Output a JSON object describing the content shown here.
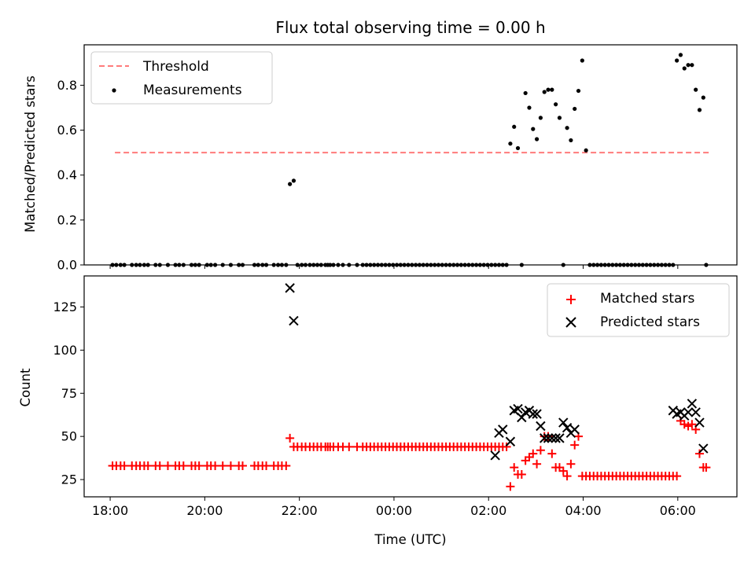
{
  "chart_data": [
    {
      "type": "scatter",
      "title": "Flux total observing time = 0.00 h",
      "xlabel": "",
      "ylabel": "Matched/Predicted stars",
      "xlim": [
        -0.55,
        13.25
      ],
      "ylim": [
        0,
        0.98
      ],
      "yticks": [
        0.0,
        0.2,
        0.4,
        0.6,
        0.8
      ],
      "ytick_labels": [
        "0.0",
        "0.2",
        "0.4",
        "0.6",
        "0.8"
      ],
      "legend": {
        "position": "upper-left"
      },
      "grid": false,
      "series": [
        {
          "name": "Threshold",
          "kind": "line",
          "style": "dashed",
          "color": "#ff7b7b",
          "x": [
            0.1,
            12.66
          ],
          "y": [
            0.5,
            0.5
          ]
        },
        {
          "name": "Measurements",
          "kind": "scatter",
          "marker": "dot",
          "color": "#000000",
          "x": [
            0.05,
            0.13,
            0.22,
            0.3,
            0.46,
            0.55,
            0.63,
            0.72,
            0.8,
            0.96,
            1.05,
            1.22,
            1.38,
            1.46,
            1.55,
            1.72,
            1.8,
            1.88,
            2.05,
            2.13,
            2.22,
            2.38,
            2.55,
            2.72,
            2.8,
            3.05,
            3.13,
            3.22,
            3.3,
            3.46,
            3.55,
            3.63,
            3.72,
            3.8,
            3.88,
            3.96,
            4.05,
            4.13,
            4.22,
            4.3,
            4.38,
            4.46,
            4.55,
            4.6,
            4.65,
            4.72,
            4.82,
            4.92,
            5.05,
            5.22,
            5.34,
            5.42,
            5.5,
            5.58,
            5.66,
            5.74,
            5.82,
            5.9,
            5.98,
            6.06,
            6.14,
            6.22,
            6.3,
            6.38,
            6.46,
            6.54,
            6.62,
            6.7,
            6.78,
            6.86,
            6.94,
            7.02,
            7.1,
            7.18,
            7.26,
            7.34,
            7.42,
            7.5,
            7.58,
            7.66,
            7.74,
            7.82,
            7.9,
            7.98,
            8.06,
            8.14,
            8.22,
            8.3,
            8.38,
            8.46,
            8.54,
            8.62,
            8.7,
            8.78,
            8.86,
            8.94,
            9.02,
            9.1,
            9.18,
            9.26,
            9.34,
            9.42,
            9.5,
            9.58,
            9.66,
            9.74,
            9.82,
            9.9,
            9.98,
            10.06,
            10.14,
            10.22,
            10.3,
            10.38,
            10.46,
            10.54,
            10.62,
            10.7,
            10.78,
            10.86,
            10.94,
            11.02,
            11.1,
            11.18,
            11.26,
            11.34,
            11.42,
            11.5,
            11.58,
            11.66,
            11.74,
            11.82,
            11.9,
            11.98,
            12.06,
            12.14,
            12.22,
            12.3,
            12.38,
            12.46,
            12.54,
            12.6
          ],
          "y": [
            0,
            0,
            0,
            0,
            0,
            0,
            0,
            0,
            0,
            0,
            0,
            0,
            0,
            0,
            0,
            0,
            0,
            0,
            0,
            0,
            0,
            0,
            0,
            0,
            0,
            0,
            0,
            0,
            0,
            0,
            0,
            0,
            0,
            0.36,
            0.375,
            0,
            0,
            0,
            0,
            0,
            0,
            0,
            0,
            0,
            0,
            0,
            0,
            0,
            0,
            0,
            0,
            0,
            0,
            0,
            0,
            0,
            0,
            0,
            0,
            0,
            0,
            0,
            0,
            0,
            0,
            0,
            0,
            0,
            0,
            0,
            0,
            0,
            0,
            0,
            0,
            0,
            0,
            0,
            0,
            0,
            0,
            0,
            0,
            0,
            0,
            0,
            0,
            0,
            0,
            0.54,
            0.615,
            0.52,
            0,
            0.765,
            0.7,
            0.605,
            0.56,
            0.655,
            0.77,
            0.78,
            0.78,
            0.715,
            0.655,
            0,
            0.61,
            0.555,
            0.695,
            0.775,
            0.91,
            0.51,
            0,
            0,
            0,
            0,
            0,
            0,
            0,
            0,
            0,
            0,
            0,
            0,
            0,
            0,
            0,
            0,
            0,
            0,
            0,
            0,
            0,
            0,
            0,
            0.91,
            0.935,
            0.875,
            0.89,
            0.89,
            0.78,
            0.69,
            0.745,
            0
          ]
        }
      ]
    },
    {
      "type": "scatter",
      "title": "",
      "xlabel": "Time (UTC)",
      "ylabel": "Count",
      "xlim": [
        -0.55,
        13.25
      ],
      "ylim": [
        15,
        143
      ],
      "yticks": [
        25,
        50,
        75,
        100,
        125
      ],
      "ytick_labels": [
        "25",
        "50",
        "75",
        "100",
        "125"
      ],
      "xticks": [
        0,
        2,
        4,
        6,
        8,
        10,
        12
      ],
      "xtick_labels": [
        "18:00",
        "20:00",
        "22:00",
        "00:00",
        "02:00",
        "04:00",
        "06:00"
      ],
      "legend": {
        "position": "upper-right"
      },
      "grid": false,
      "series": [
        {
          "name": "Matched stars",
          "kind": "scatter",
          "marker": "plus",
          "color": "#ff0000",
          "x": [
            0.05,
            0.13,
            0.22,
            0.3,
            0.46,
            0.55,
            0.63,
            0.72,
            0.8,
            0.96,
            1.05,
            1.22,
            1.38,
            1.46,
            1.55,
            1.72,
            1.8,
            1.88,
            2.05,
            2.13,
            2.22,
            2.38,
            2.55,
            2.72,
            2.8,
            3.05,
            3.13,
            3.22,
            3.3,
            3.46,
            3.55,
            3.63,
            3.72,
            3.8,
            3.88,
            3.96,
            4.05,
            4.13,
            4.22,
            4.3,
            4.38,
            4.46,
            4.55,
            4.6,
            4.65,
            4.72,
            4.82,
            4.92,
            5.05,
            5.22,
            5.34,
            5.42,
            5.5,
            5.58,
            5.66,
            5.74,
            5.82,
            5.9,
            5.98,
            6.06,
            6.14,
            6.22,
            6.3,
            6.38,
            6.46,
            6.54,
            6.62,
            6.7,
            6.78,
            6.86,
            6.94,
            7.02,
            7.1,
            7.18,
            7.26,
            7.34,
            7.42,
            7.5,
            7.58,
            7.66,
            7.74,
            7.82,
            7.9,
            7.98,
            8.06,
            8.14,
            8.22,
            8.3,
            8.38,
            8.46,
            8.54,
            8.62,
            8.7,
            8.78,
            8.86,
            8.94,
            9.02,
            9.1,
            9.18,
            9.26,
            9.34,
            9.42,
            9.5,
            9.58,
            9.66,
            9.74,
            9.82,
            9.9,
            9.98,
            10.06,
            10.14,
            10.22,
            10.3,
            10.38,
            10.46,
            10.54,
            10.62,
            10.7,
            10.78,
            10.86,
            10.94,
            11.02,
            11.1,
            11.18,
            11.26,
            11.34,
            11.42,
            11.5,
            11.58,
            11.66,
            11.74,
            11.82,
            11.9,
            11.98,
            12.06,
            12.14,
            12.22,
            12.3,
            12.38,
            12.46,
            12.54,
            12.6
          ],
          "y": [
            33,
            33,
            33,
            33,
            33,
            33,
            33,
            33,
            33,
            33,
            33,
            33,
            33,
            33,
            33,
            33,
            33,
            33,
            33,
            33,
            33,
            33,
            33,
            33,
            33,
            33,
            33,
            33,
            33,
            33,
            33,
            33,
            33,
            49,
            44,
            44,
            44,
            44,
            44,
            44,
            44,
            44,
            44,
            44,
            44,
            44,
            44,
            44,
            44,
            44,
            44,
            44,
            44,
            44,
            44,
            44,
            44,
            44,
            44,
            44,
            44,
            44,
            44,
            44,
            44,
            44,
            44,
            44,
            44,
            44,
            44,
            44,
            44,
            44,
            44,
            44,
            44,
            44,
            44,
            44,
            44,
            44,
            44,
            44,
            44,
            44,
            44,
            44,
            44,
            21,
            32,
            28,
            28,
            36,
            38,
            40,
            34,
            42,
            50,
            50,
            40,
            32,
            32,
            30,
            27,
            34,
            45,
            50,
            27,
            27,
            27,
            27,
            27,
            27,
            27,
            27,
            27,
            27,
            27,
            27,
            27,
            27,
            27,
            27,
            27,
            27,
            27,
            27,
            27,
            27,
            27,
            27,
            27,
            27,
            59,
            57,
            56,
            57,
            54,
            40,
            32,
            32
          ]
        },
        {
          "name": "Predicted stars",
          "kind": "scatter",
          "marker": "x",
          "color": "#000000",
          "x": [
            3.8,
            3.88,
            8.14,
            8.22,
            8.3,
            8.46,
            8.54,
            8.62,
            8.7,
            8.78,
            8.86,
            8.94,
            9.02,
            9.1,
            9.18,
            9.26,
            9.34,
            9.42,
            9.5,
            9.58,
            9.66,
            9.74,
            9.82,
            11.9,
            11.98,
            12.06,
            12.14,
            12.22,
            12.3,
            12.38,
            12.46,
            12.54
          ],
          "y": [
            136,
            117,
            39,
            52,
            54,
            47,
            65,
            66,
            61,
            64,
            65,
            63,
            63,
            56,
            49,
            49,
            49,
            49,
            49,
            58,
            55,
            52,
            54,
            65,
            63,
            64,
            62,
            64,
            69,
            64,
            58,
            43
          ]
        }
      ]
    }
  ]
}
